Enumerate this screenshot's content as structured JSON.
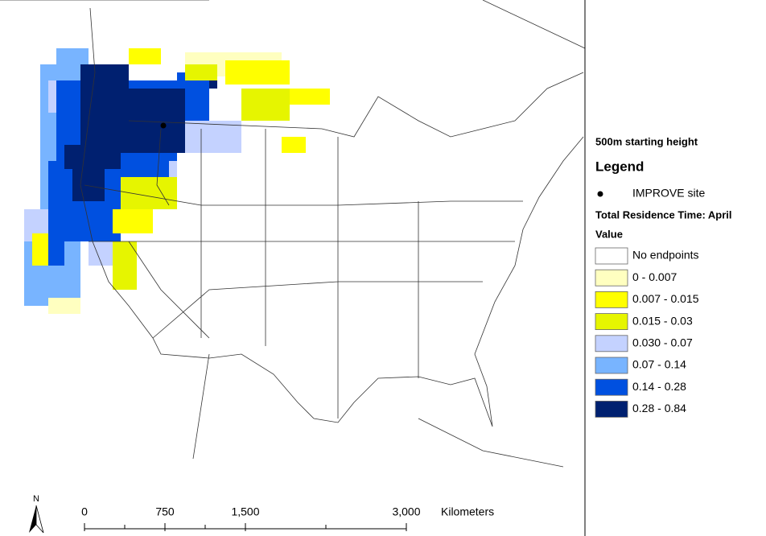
{
  "map": {
    "subtitle": "500m starting height",
    "legend_title": "Legend",
    "site_label": "IMPROVE site",
    "layer_title": "Total Residence Time: April",
    "field": "Value",
    "classes": [
      {
        "label": "No endpoints",
        "color": "#ffffff"
      },
      {
        "label": "0 - 0.007",
        "color": "#ffffc0"
      },
      {
        "label": "0.007 - 0.015",
        "color": "#ffff00"
      },
      {
        "label": "0.015 - 0.03",
        "color": "#e6f500"
      },
      {
        "label": "0.030 - 0.07",
        "color": "#c4d2ff"
      },
      {
        "label": "0.07 - 0.14",
        "color": "#78b4ff"
      },
      {
        "label": "0.14 - 0.28",
        "color": "#0050e0"
      },
      {
        "label": "0.28 - 0.84",
        "color": "#002070"
      }
    ],
    "scale": {
      "ticks": [
        "0",
        "750",
        "1,500",
        "3,000"
      ],
      "unit": "Kilometers"
    },
    "north": "N"
  }
}
